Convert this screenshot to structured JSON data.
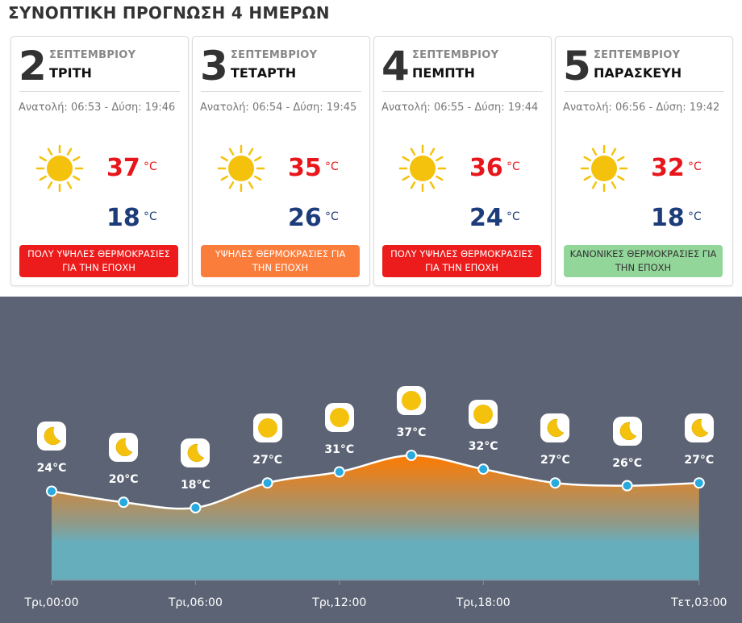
{
  "title": "ΣΥΝΟΠΤΙΚΗ ΠΡΟΓΝΩΣΗ 4 ΗΜΕΡΩΝ",
  "days": [
    {
      "num": "2",
      "month": "ΣΕΠΤΕΜΒΡΙΟΥ",
      "weekday": "ΤΡΙΤΗ",
      "sun": "Ανατολή: 06:53 - Δύση: 19:46",
      "icon": "sun-icon",
      "max": "37",
      "min": "18",
      "unit": "°C",
      "badge": "ΠΟΛΥ ΥΨΗΛΕΣ ΘΕΡΜΟΚΡΑΣΙΕΣ ΓΙΑ ΤΗΝ ΕΠΟΧΗ",
      "badge_color": "#ed1c1c",
      "badge_text": "#ffffff"
    },
    {
      "num": "3",
      "month": "ΣΕΠΤΕΜΒΡΙΟΥ",
      "weekday": "ΤΕΤΑΡΤΗ",
      "sun": "Ανατολή: 06:54 - Δύση: 19:45",
      "icon": "sun-icon",
      "max": "35",
      "min": "26",
      "unit": "°C",
      "badge": "ΥΨΗΛΕΣ ΘΕΡΜΟΚΡΑΣΙΕΣ ΓΙΑ ΤΗΝ ΕΠΟΧΗ",
      "badge_color": "#fb7d3c",
      "badge_text": "#ffffff"
    },
    {
      "num": "4",
      "month": "ΣΕΠΤΕΜΒΡΙΟΥ",
      "weekday": "ΠΕΜΠΤΗ",
      "sun": "Ανατολή: 06:55 - Δύση: 19:44",
      "icon": "sun-icon",
      "max": "36",
      "min": "24",
      "unit": "°C",
      "badge": "ΠΟΛΥ ΥΨΗΛΕΣ ΘΕΡΜΟΚΡΑΣΙΕΣ ΓΙΑ ΤΗΝ ΕΠΟΧΗ",
      "badge_color": "#ed1c1c",
      "badge_text": "#ffffff"
    },
    {
      "num": "5",
      "month": "ΣΕΠΤΕΜΒΡΙΟΥ",
      "weekday": "ΠΑΡΑΣΚΕΥΗ",
      "sun": "Ανατολή: 06:56 - Δύση: 19:42",
      "icon": "sun-icon",
      "max": "32",
      "min": "18",
      "unit": "°C",
      "badge": "ΚΑΝΟΝΙΚΕΣ ΘΕΡΜΟΚΡΑΣΙΕΣ ΓΙΑ ΤΗΝ ΕΠΟΧΗ",
      "badge_color": "#93d69a",
      "badge_text": "#333333"
    }
  ],
  "chart_data": {
    "type": "area",
    "x": [
      "Τρι,00:00",
      "Τρι,03:00",
      "Τρι,06:00",
      "Τρι,09:00",
      "Τρι,12:00",
      "Τρι,15:00",
      "Τρι,18:00",
      "Τρι,21:00",
      "Τετ,00:00",
      "Τετ,03:00"
    ],
    "y": [
      24,
      20,
      18,
      27,
      31,
      37,
      32,
      27,
      26,
      27
    ],
    "labels": [
      "24°C",
      "20°C",
      "18°C",
      "27°C",
      "31°C",
      "37°C",
      "32°C",
      "27°C",
      "26°C",
      "27°C"
    ],
    "icons": [
      "moon-icon",
      "moon-icon",
      "moon-icon",
      "sun-icon",
      "sun-icon",
      "sun-icon",
      "sun-icon",
      "moon-icon",
      "moon-icon",
      "moon-icon"
    ],
    "xtick_labels": [
      "Τρι,00:00",
      "Τρι,06:00",
      "Τρι,12:00",
      "Τρι,18:00",
      "Τετ,03:00"
    ],
    "colors": {
      "background": "#5b6374",
      "fill_top": "#ff7a00",
      "fill_bottom": "#67aebd",
      "line": "#ffffff",
      "point": "#29a9de",
      "icon": "#f4c20d"
    }
  }
}
